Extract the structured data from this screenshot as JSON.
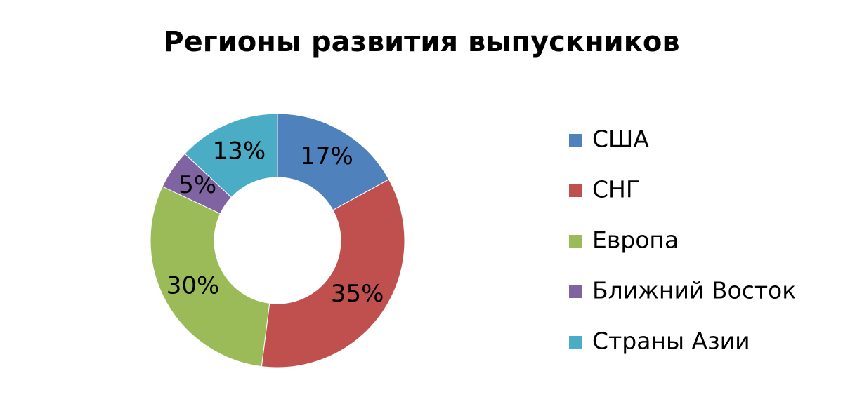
{
  "chart_data": {
    "type": "pie",
    "title": "Регионы развития выпускников",
    "categories": [
      "США",
      "СНГ",
      "Европа",
      "Ближний Восток",
      "Страны Азии"
    ],
    "values": [
      17,
      35,
      30,
      5,
      13
    ],
    "value_labels": [
      "17%",
      "35%",
      "30%",
      "5%",
      "13%"
    ],
    "colors": [
      "#4f81bd",
      "#c0504d",
      "#9bbb59",
      "#8064a2",
      "#4bacc6"
    ],
    "legend": "right"
  }
}
